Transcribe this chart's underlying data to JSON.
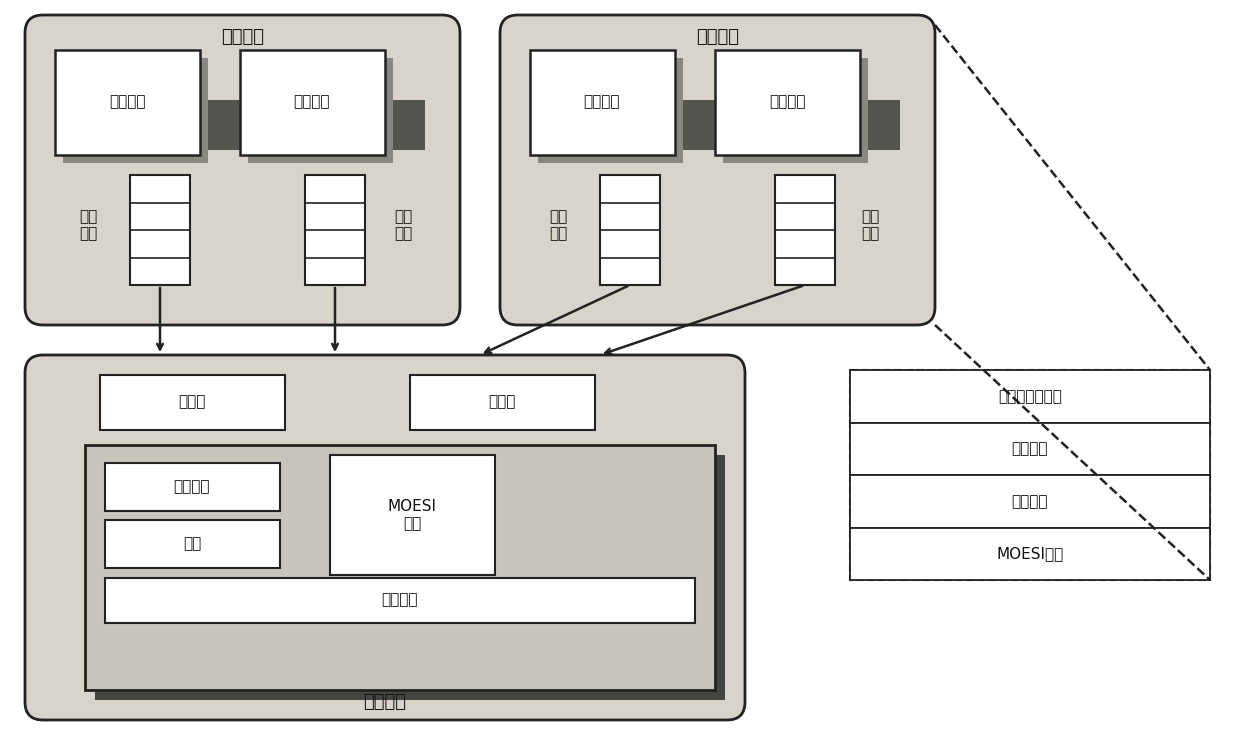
{
  "title1": "芯线程一",
  "title2": "芯线程二",
  "title3": "管理线程",
  "proc_core": "处理器核",
  "recv_queue": "接受\n队列",
  "send_queue": "发送\n队列",
  "barrier1": "路障一",
  "barrier2": "路障二",
  "l2cache": "三级缓存",
  "mainmem": "主存",
  "moesi": "MOESI\n协议",
  "interconnect": "互连网路",
  "func_sys": "功能仿真子系统",
  "l1cache": "一级缓存",
  "moesi2": "MOESI协议",
  "bg_light": "#d8d4cc",
  "bg_inner": "#c8c4bc",
  "white": "#ffffff",
  "shadow_color": "#888880",
  "edge_color": "#222222",
  "font_color": "#111111"
}
